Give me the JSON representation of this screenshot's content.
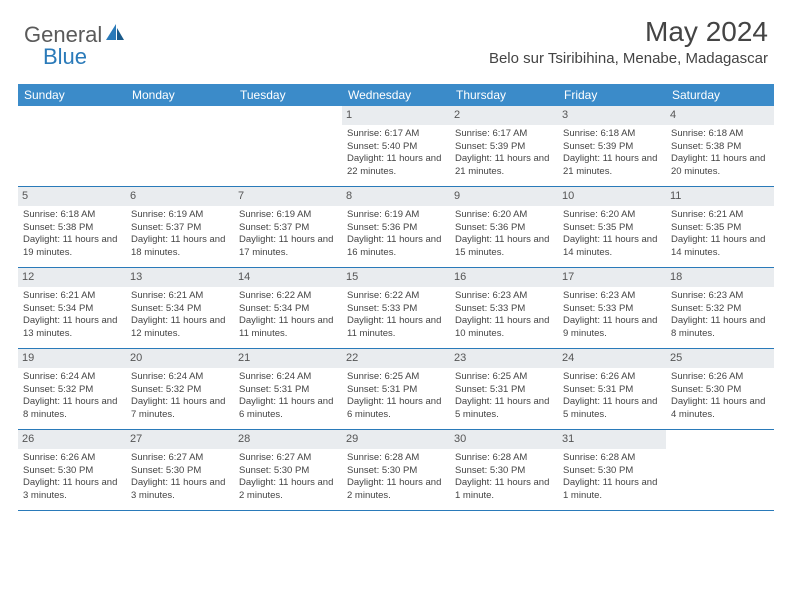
{
  "logo": {
    "text1": "General",
    "text2": "Blue"
  },
  "header": {
    "month": "May 2024",
    "location": "Belo sur Tsiribihina, Menabe, Madagascar"
  },
  "dayNames": [
    "Sunday",
    "Monday",
    "Tuesday",
    "Wednesday",
    "Thursday",
    "Friday",
    "Saturday"
  ],
  "style": {
    "header_bg": "#3b8bc9",
    "header_text": "#ffffff",
    "daynum_bg": "#e9ecef",
    "border": "#2a7ab9",
    "text": "#444444",
    "font_small": 9.5,
    "font_daynum": 11,
    "font_header": 12
  },
  "weeks": [
    [
      {
        "n": "",
        "rise": "",
        "set": "",
        "day": ""
      },
      {
        "n": "",
        "rise": "",
        "set": "",
        "day": ""
      },
      {
        "n": "",
        "rise": "",
        "set": "",
        "day": ""
      },
      {
        "n": "1",
        "rise": "Sunrise: 6:17 AM",
        "set": "Sunset: 5:40 PM",
        "day": "Daylight: 11 hours and 22 minutes."
      },
      {
        "n": "2",
        "rise": "Sunrise: 6:17 AM",
        "set": "Sunset: 5:39 PM",
        "day": "Daylight: 11 hours and 21 minutes."
      },
      {
        "n": "3",
        "rise": "Sunrise: 6:18 AM",
        "set": "Sunset: 5:39 PM",
        "day": "Daylight: 11 hours and 21 minutes."
      },
      {
        "n": "4",
        "rise": "Sunrise: 6:18 AM",
        "set": "Sunset: 5:38 PM",
        "day": "Daylight: 11 hours and 20 minutes."
      }
    ],
    [
      {
        "n": "5",
        "rise": "Sunrise: 6:18 AM",
        "set": "Sunset: 5:38 PM",
        "day": "Daylight: 11 hours and 19 minutes."
      },
      {
        "n": "6",
        "rise": "Sunrise: 6:19 AM",
        "set": "Sunset: 5:37 PM",
        "day": "Daylight: 11 hours and 18 minutes."
      },
      {
        "n": "7",
        "rise": "Sunrise: 6:19 AM",
        "set": "Sunset: 5:37 PM",
        "day": "Daylight: 11 hours and 17 minutes."
      },
      {
        "n": "8",
        "rise": "Sunrise: 6:19 AM",
        "set": "Sunset: 5:36 PM",
        "day": "Daylight: 11 hours and 16 minutes."
      },
      {
        "n": "9",
        "rise": "Sunrise: 6:20 AM",
        "set": "Sunset: 5:36 PM",
        "day": "Daylight: 11 hours and 15 minutes."
      },
      {
        "n": "10",
        "rise": "Sunrise: 6:20 AM",
        "set": "Sunset: 5:35 PM",
        "day": "Daylight: 11 hours and 14 minutes."
      },
      {
        "n": "11",
        "rise": "Sunrise: 6:21 AM",
        "set": "Sunset: 5:35 PM",
        "day": "Daylight: 11 hours and 14 minutes."
      }
    ],
    [
      {
        "n": "12",
        "rise": "Sunrise: 6:21 AM",
        "set": "Sunset: 5:34 PM",
        "day": "Daylight: 11 hours and 13 minutes."
      },
      {
        "n": "13",
        "rise": "Sunrise: 6:21 AM",
        "set": "Sunset: 5:34 PM",
        "day": "Daylight: 11 hours and 12 minutes."
      },
      {
        "n": "14",
        "rise": "Sunrise: 6:22 AM",
        "set": "Sunset: 5:34 PM",
        "day": "Daylight: 11 hours and 11 minutes."
      },
      {
        "n": "15",
        "rise": "Sunrise: 6:22 AM",
        "set": "Sunset: 5:33 PM",
        "day": "Daylight: 11 hours and 11 minutes."
      },
      {
        "n": "16",
        "rise": "Sunrise: 6:23 AM",
        "set": "Sunset: 5:33 PM",
        "day": "Daylight: 11 hours and 10 minutes."
      },
      {
        "n": "17",
        "rise": "Sunrise: 6:23 AM",
        "set": "Sunset: 5:33 PM",
        "day": "Daylight: 11 hours and 9 minutes."
      },
      {
        "n": "18",
        "rise": "Sunrise: 6:23 AM",
        "set": "Sunset: 5:32 PM",
        "day": "Daylight: 11 hours and 8 minutes."
      }
    ],
    [
      {
        "n": "19",
        "rise": "Sunrise: 6:24 AM",
        "set": "Sunset: 5:32 PM",
        "day": "Daylight: 11 hours and 8 minutes."
      },
      {
        "n": "20",
        "rise": "Sunrise: 6:24 AM",
        "set": "Sunset: 5:32 PM",
        "day": "Daylight: 11 hours and 7 minutes."
      },
      {
        "n": "21",
        "rise": "Sunrise: 6:24 AM",
        "set": "Sunset: 5:31 PM",
        "day": "Daylight: 11 hours and 6 minutes."
      },
      {
        "n": "22",
        "rise": "Sunrise: 6:25 AM",
        "set": "Sunset: 5:31 PM",
        "day": "Daylight: 11 hours and 6 minutes."
      },
      {
        "n": "23",
        "rise": "Sunrise: 6:25 AM",
        "set": "Sunset: 5:31 PM",
        "day": "Daylight: 11 hours and 5 minutes."
      },
      {
        "n": "24",
        "rise": "Sunrise: 6:26 AM",
        "set": "Sunset: 5:31 PM",
        "day": "Daylight: 11 hours and 5 minutes."
      },
      {
        "n": "25",
        "rise": "Sunrise: 6:26 AM",
        "set": "Sunset: 5:30 PM",
        "day": "Daylight: 11 hours and 4 minutes."
      }
    ],
    [
      {
        "n": "26",
        "rise": "Sunrise: 6:26 AM",
        "set": "Sunset: 5:30 PM",
        "day": "Daylight: 11 hours and 3 minutes."
      },
      {
        "n": "27",
        "rise": "Sunrise: 6:27 AM",
        "set": "Sunset: 5:30 PM",
        "day": "Daylight: 11 hours and 3 minutes."
      },
      {
        "n": "28",
        "rise": "Sunrise: 6:27 AM",
        "set": "Sunset: 5:30 PM",
        "day": "Daylight: 11 hours and 2 minutes."
      },
      {
        "n": "29",
        "rise": "Sunrise: 6:28 AM",
        "set": "Sunset: 5:30 PM",
        "day": "Daylight: 11 hours and 2 minutes."
      },
      {
        "n": "30",
        "rise": "Sunrise: 6:28 AM",
        "set": "Sunset: 5:30 PM",
        "day": "Daylight: 11 hours and 1 minute."
      },
      {
        "n": "31",
        "rise": "Sunrise: 6:28 AM",
        "set": "Sunset: 5:30 PM",
        "day": "Daylight: 11 hours and 1 minute."
      },
      {
        "n": "",
        "rise": "",
        "set": "",
        "day": ""
      }
    ]
  ]
}
